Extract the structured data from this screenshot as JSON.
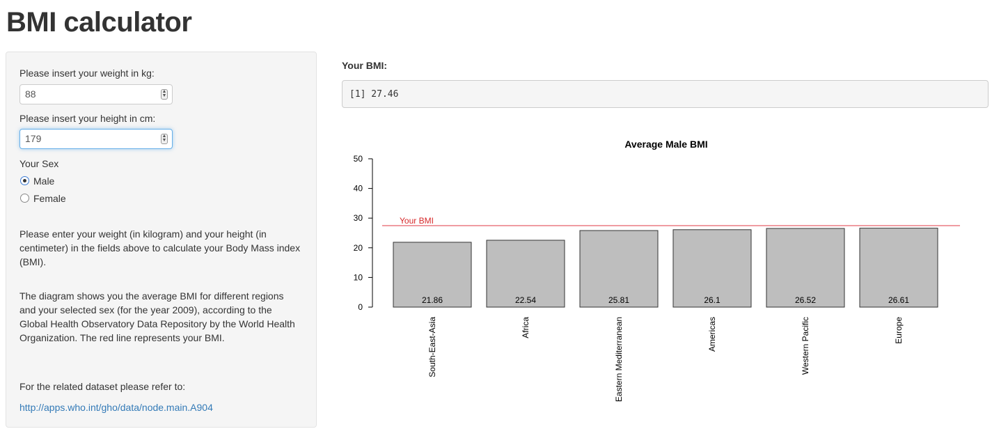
{
  "app": {
    "title": "BMI calculator"
  },
  "sidebar": {
    "weight_label": "Please insert your weight in kg:",
    "weight_value": "88",
    "height_label": "Please insert your height in cm:",
    "height_value": "179",
    "sex_label": "Your Sex",
    "sex_options": [
      "Male",
      "Female"
    ],
    "sex_selected": "Male",
    "paragraph1": "Please enter your weight (in kilogram) and your height (in centimeter) in the fields above to calculate your Body Mass index (BMI).",
    "paragraph2": "The diagram shows you the average BMI for different regions and your selected sex (for the year 2009), according to the Global Health Observatory Data Repository by the World Health Organization. The red line represents your BMI.",
    "dataset_label": "For the related dataset please refer to:",
    "dataset_link": "http://apps.who.int/gho/data/node.main.A904"
  },
  "result": {
    "label": "Your BMI:",
    "output": "[1] 27.46"
  },
  "colors": {
    "bar_fill": "#bebebe",
    "bar_stroke": "#333333",
    "reference_line": "#e8626a",
    "link": "#337ab7"
  },
  "chart_data": {
    "type": "bar",
    "title": "Average Male BMI",
    "xlabel": "",
    "ylabel": "",
    "categories": [
      "South-East-Asia",
      "Africa",
      "Eastern Mediterranean",
      "Americas",
      "Western Pacific",
      "Europe"
    ],
    "values": [
      21.86,
      22.54,
      25.81,
      26.1,
      26.52,
      26.61
    ],
    "value_labels": [
      "21.86",
      "22.54",
      "25.81",
      "26.1",
      "26.52",
      "26.61"
    ],
    "ylim": [
      0,
      50
    ],
    "yticks": [
      0,
      10,
      20,
      30,
      40,
      50
    ],
    "grid": false,
    "reference_line": {
      "label": "Your BMI",
      "value": 27.46
    }
  }
}
